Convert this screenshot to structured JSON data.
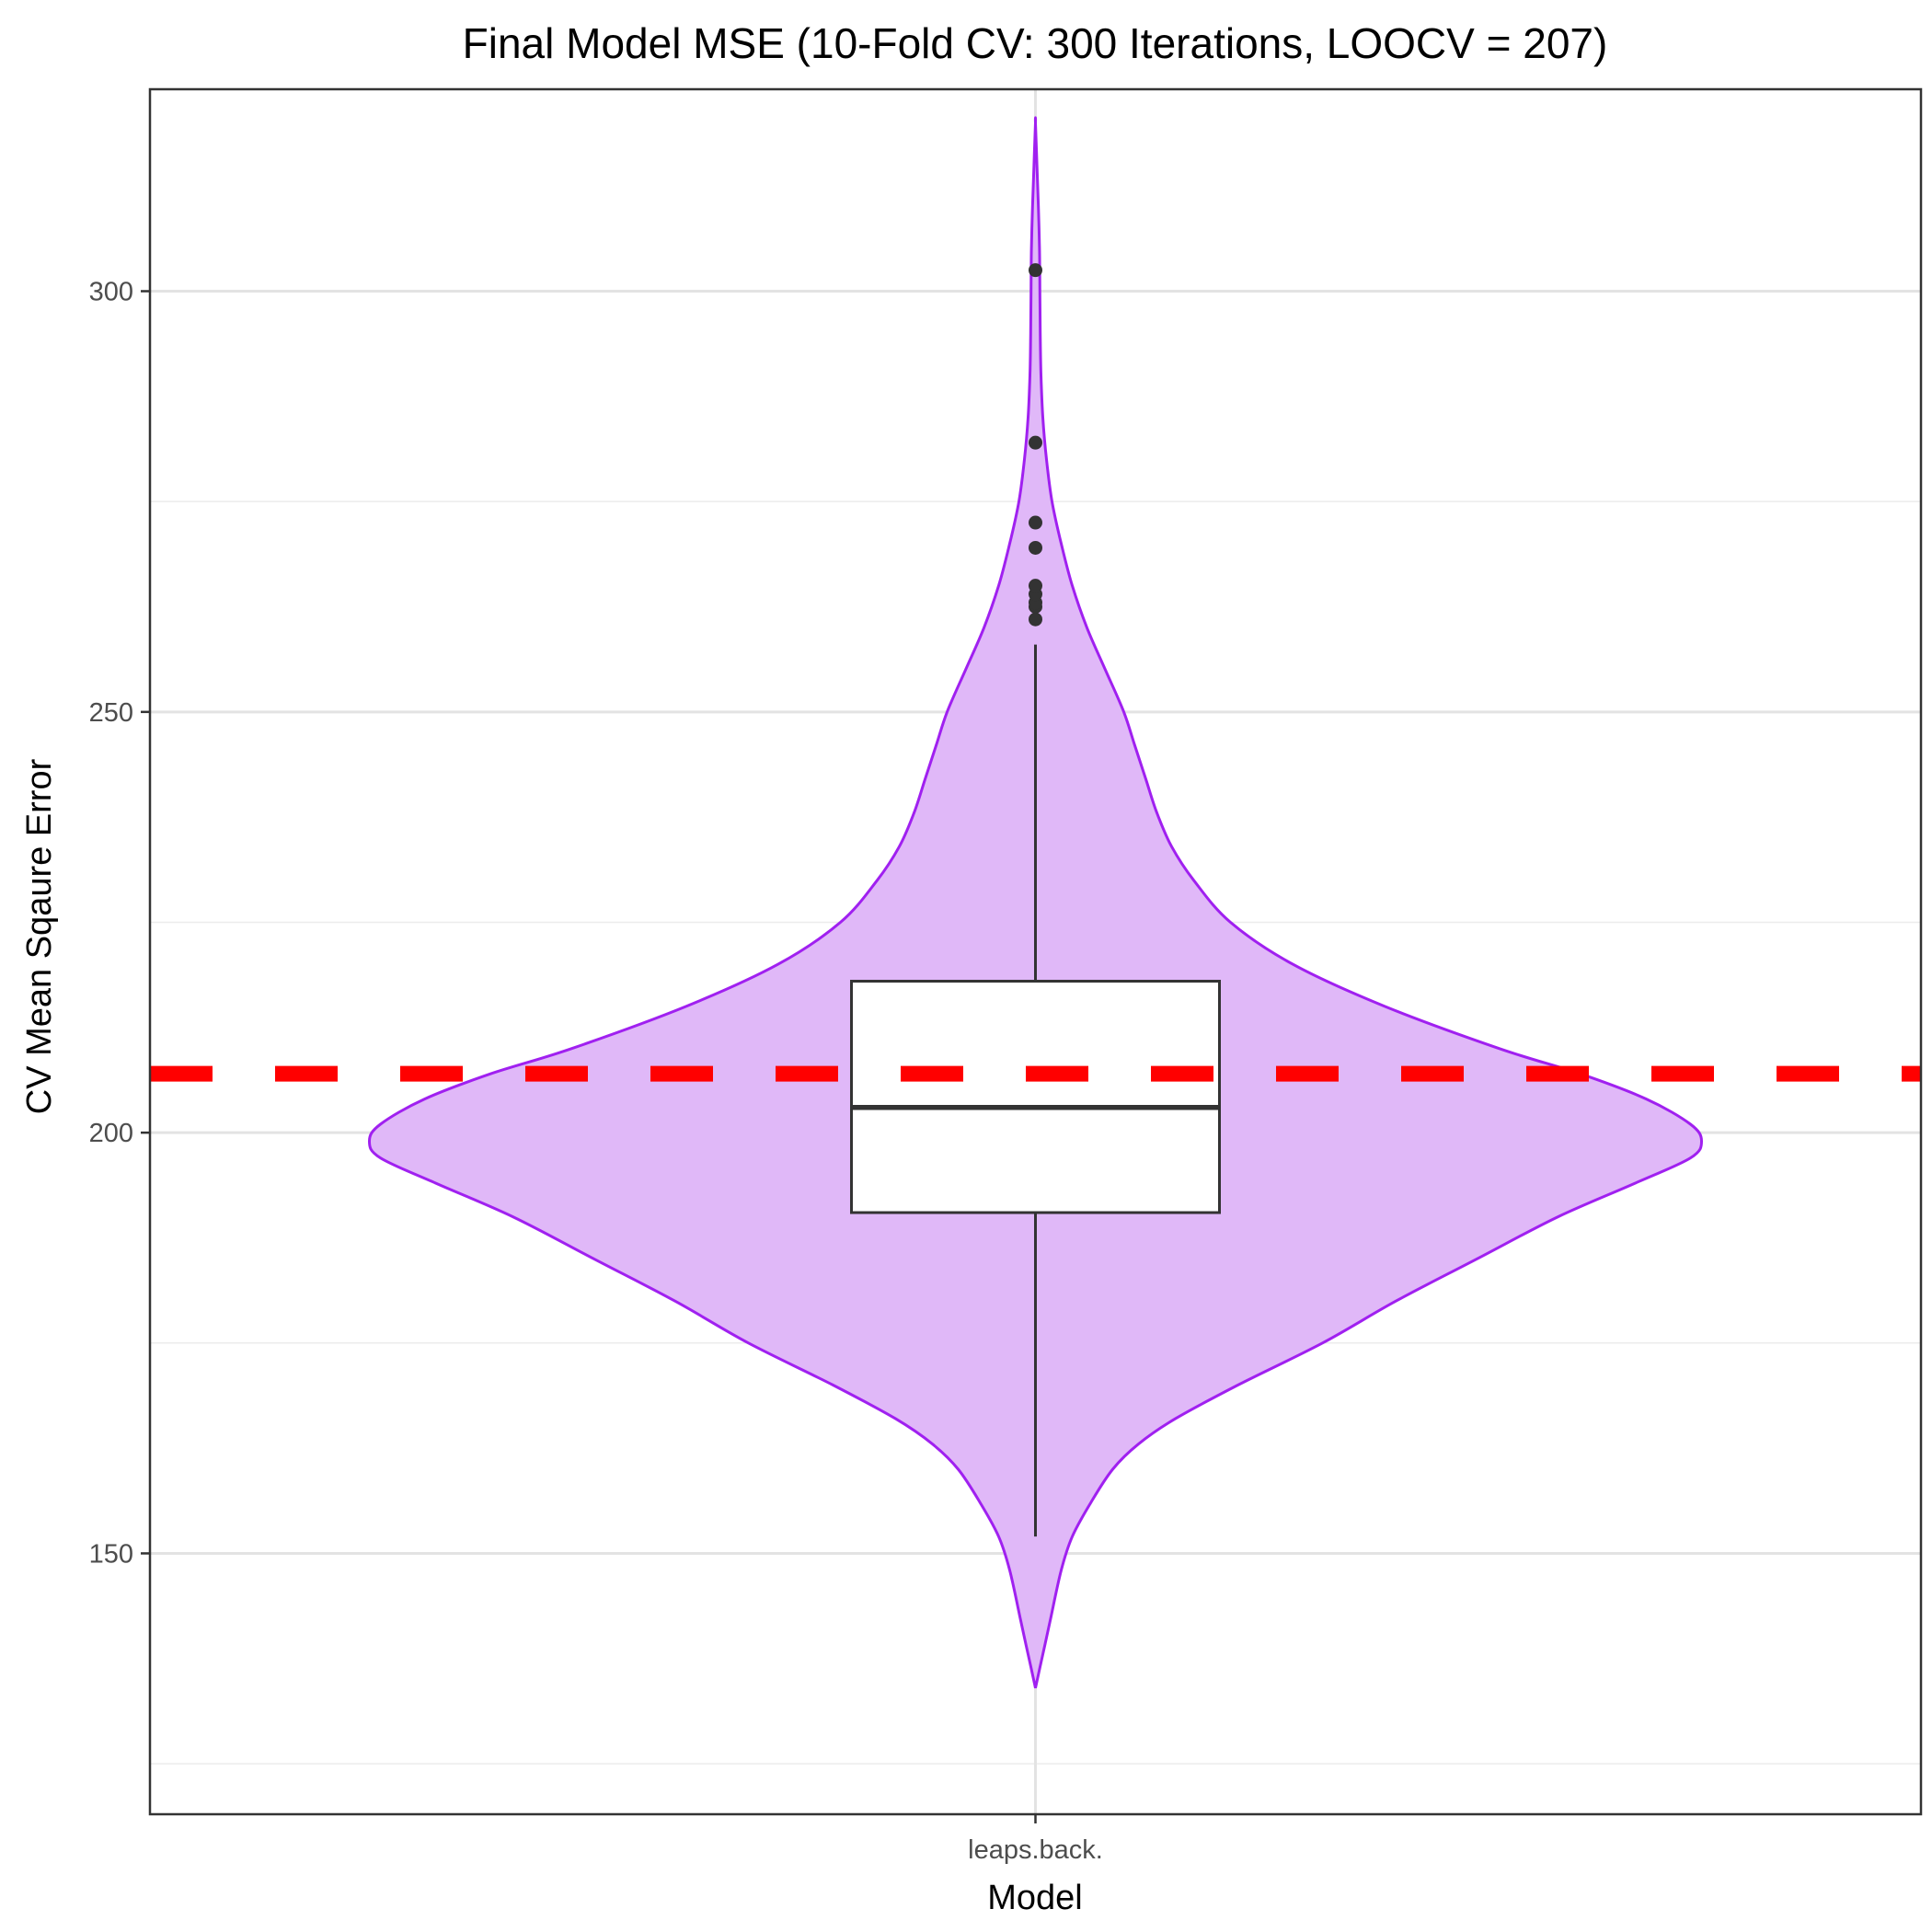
{
  "chart_data": {
    "type": "violin",
    "title": "Final Model MSE (10-Fold CV: 300 Iterations, LOOCV = 207)",
    "xlabel": "Model",
    "ylabel": "CV Mean Sqaure Error",
    "categories": [
      "leaps.back."
    ],
    "ylim": [
      119,
      324
    ],
    "y_ticks": [
      150,
      200,
      250,
      300
    ],
    "y_tick_labels": [
      "150",
      "200",
      "250",
      "300"
    ],
    "grid": true,
    "reference_line": {
      "y": 207,
      "style": "dashed",
      "color": "#ff0000"
    },
    "violin": {
      "fill": "#e0b8f8",
      "stroke": "#a020f0",
      "min": 134,
      "max": 320,
      "profile": [
        [
          134,
          0.0
        ],
        [
          138,
          0.02
        ],
        [
          142,
          0.04
        ],
        [
          148,
          0.07
        ],
        [
          152,
          0.1
        ],
        [
          156,
          0.15
        ],
        [
          160,
          0.21
        ],
        [
          163,
          0.28
        ],
        [
          166,
          0.38
        ],
        [
          170,
          0.55
        ],
        [
          175,
          0.78
        ],
        [
          180,
          0.98
        ],
        [
          185,
          1.2
        ],
        [
          190,
          1.42
        ],
        [
          194,
          1.63
        ],
        [
          197,
          1.78
        ],
        [
          199,
          1.81
        ],
        [
          201,
          1.78
        ],
        [
          204,
          1.66
        ],
        [
          207,
          1.48
        ],
        [
          210,
          1.26
        ],
        [
          215,
          0.95
        ],
        [
          220,
          0.7
        ],
        [
          225,
          0.53
        ],
        [
          230,
          0.43
        ],
        [
          234,
          0.37
        ],
        [
          238,
          0.33
        ],
        [
          242,
          0.3
        ],
        [
          246,
          0.27
        ],
        [
          250,
          0.24
        ],
        [
          255,
          0.19
        ],
        [
          260,
          0.14
        ],
        [
          265,
          0.1
        ],
        [
          270,
          0.07
        ],
        [
          275,
          0.045
        ],
        [
          280,
          0.03
        ],
        [
          285,
          0.02
        ],
        [
          290,
          0.015
        ],
        [
          295,
          0.013
        ],
        [
          300,
          0.012
        ],
        [
          305,
          0.011
        ],
        [
          310,
          0.008
        ],
        [
          315,
          0.004
        ],
        [
          320,
          0.0
        ]
      ]
    },
    "boxplot": {
      "median": 203,
      "q1": 190.5,
      "q3": 218,
      "whisker_low": 152,
      "whisker_high": 258,
      "outliers": [
        261,
        262.5,
        263,
        264,
        265,
        269.5,
        272.5,
        282,
        302.5
      ],
      "fill": "#ffffff",
      "stroke": "#333333"
    }
  }
}
